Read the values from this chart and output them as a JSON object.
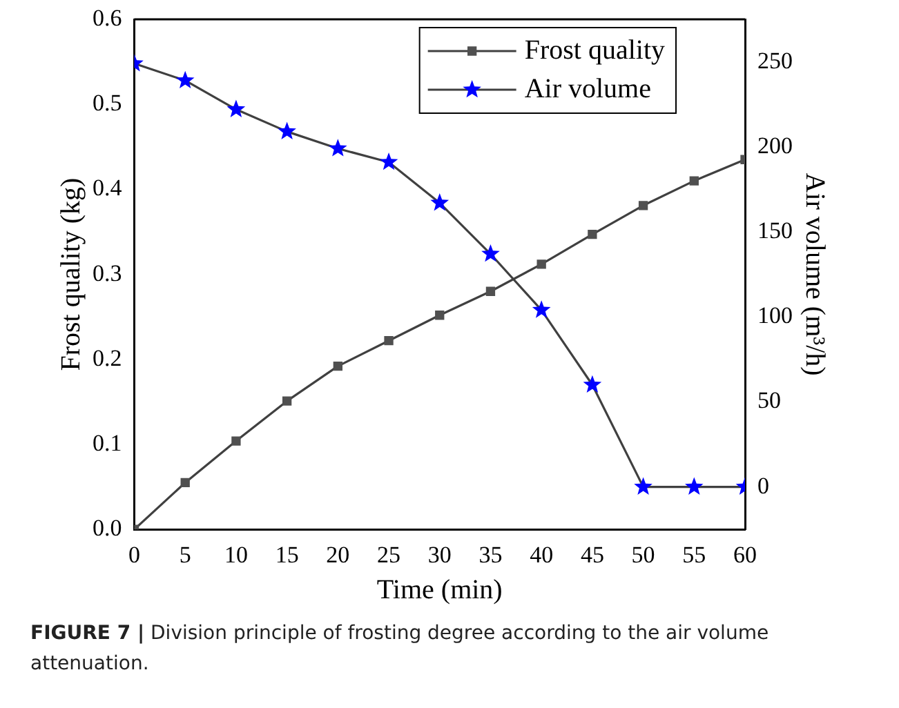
{
  "chart_data": {
    "type": "line",
    "xlabel": "Time (min)",
    "ylabel": "Frost quality (kg)",
    "y2label": "Air volume (m³/h)",
    "x": [
      0,
      5,
      10,
      15,
      20,
      25,
      30,
      35,
      40,
      45,
      50,
      55,
      60
    ],
    "xlim": [
      0,
      60
    ],
    "xticks": [
      0,
      5,
      10,
      15,
      20,
      25,
      30,
      35,
      40,
      45,
      50,
      55,
      60
    ],
    "ylim": [
      0,
      0.6
    ],
    "yticks": [
      {
        "value": 0,
        "label": "0.0"
      },
      0.1,
      0.2,
      0.3,
      0.4,
      0.5,
      0.6
    ],
    "y2lim": [
      -25,
      275
    ],
    "y2ticks": [
      0,
      50,
      100,
      150,
      200,
      250
    ],
    "series": [
      {
        "name": "Frost quality",
        "color": "#505050",
        "marker": "square",
        "values": [
          0,
          0.055,
          0.104,
          0.151,
          0.192,
          0.222,
          0.252,
          0.28,
          0.312,
          0.347,
          0.381,
          0.41,
          0.435
        ]
      },
      {
        "name": "Air volume",
        "color": "#0000ff",
        "marker": "star",
        "axis": "y2",
        "values": [
          249,
          239,
          222,
          209,
          199,
          191,
          167,
          137,
          104,
          60,
          0,
          0,
          0
        ]
      }
    ],
    "legend": "top right",
    "grid": false,
    "annotations": [
      "FIGURE 7 | Division principle of frosting degree according to the air volume attenuation."
    ]
  }
}
